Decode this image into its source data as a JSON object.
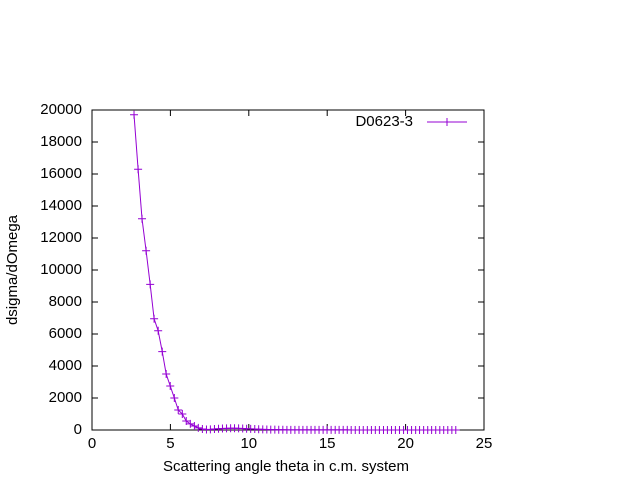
{
  "chart_data": {
    "type": "line",
    "x_label": "Scattering angle theta in c.m. system",
    "y_label": "dsigma/dOmega",
    "x": [
      2.68,
      2.94,
      3.19,
      3.45,
      3.71,
      3.96,
      4.22,
      4.48,
      4.73,
      4.99,
      5.25,
      5.5,
      5.76,
      6.01,
      6.27,
      6.53,
      6.78,
      7.04,
      7.3,
      7.55,
      7.81,
      8.07,
      8.32,
      8.58,
      8.84,
      9.09,
      9.35,
      9.61,
      9.86,
      10.12,
      10.38,
      10.63,
      10.89,
      11.15,
      11.4,
      11.66,
      11.91,
      12.17,
      12.43,
      12.68,
      12.94,
      13.2,
      13.45,
      13.71,
      13.97,
      14.22,
      14.48,
      14.74,
      14.99,
      15.25,
      15.51,
      15.76,
      16.02,
      16.28,
      16.53,
      16.79,
      17.05,
      17.3,
      17.56,
      17.82,
      18.07,
      18.33,
      18.59,
      18.84,
      19.1,
      19.35,
      19.61,
      19.87,
      20.12,
      20.38,
      20.64,
      20.89,
      21.15,
      21.41,
      21.66,
      21.92,
      22.18,
      22.43,
      22.69,
      22.95,
      23.2
    ],
    "series": [
      {
        "name": "D0623-3",
        "color": "#9400d3",
        "values": [
          19700,
          16300,
          13200,
          11200,
          9100,
          6950,
          6200,
          4900,
          3500,
          2750,
          2000,
          1250,
          1000,
          560,
          380,
          250,
          130,
          60,
          30,
          40,
          60,
          80,
          90,
          100,
          110,
          110,
          100,
          90,
          80,
          70,
          60,
          50,
          40,
          30,
          25,
          20,
          15,
          12,
          10,
          9,
          8,
          8,
          8,
          7,
          7,
          6,
          6,
          5,
          5,
          5,
          4,
          4,
          4,
          4,
          3,
          3,
          3,
          3,
          3,
          3,
          2,
          2,
          2,
          2,
          2,
          2,
          2,
          2,
          2,
          2,
          1,
          1,
          1,
          1,
          1,
          1,
          1,
          1,
          1,
          1,
          1
        ]
      }
    ],
    "xlim": [
      0,
      25
    ],
    "xticks": [
      0,
      5,
      10,
      15,
      20,
      25
    ],
    "ylim": [
      0,
      20000
    ],
    "yticks": [
      0,
      2000,
      4000,
      6000,
      8000,
      10000,
      12000,
      14000,
      16000,
      18000,
      20000
    ],
    "legend": "top-right",
    "grid": false
  }
}
